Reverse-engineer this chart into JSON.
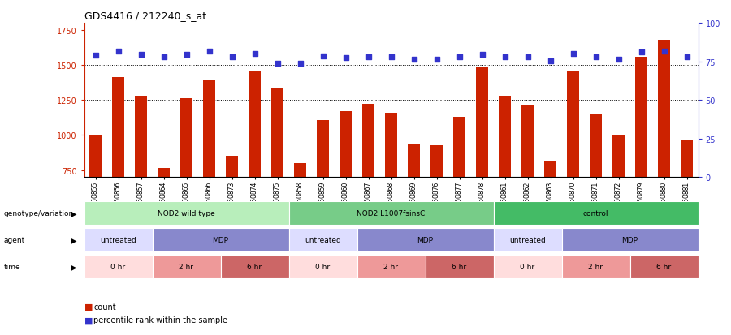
{
  "title": "GDS4416 / 212240_s_at",
  "samples": [
    "GSM560855",
    "GSM560856",
    "GSM560857",
    "GSM560864",
    "GSM560865",
    "GSM560866",
    "GSM560873",
    "GSM560874",
    "GSM560875",
    "GSM560858",
    "GSM560859",
    "GSM560860",
    "GSM560867",
    "GSM560868",
    "GSM560869",
    "GSM560876",
    "GSM560877",
    "GSM560878",
    "GSM560861",
    "GSM560862",
    "GSM560863",
    "GSM560870",
    "GSM560871",
    "GSM560872",
    "GSM560879",
    "GSM560880",
    "GSM560881"
  ],
  "counts": [
    1005,
    1415,
    1280,
    765,
    1260,
    1390,
    855,
    1460,
    1340,
    800,
    1105,
    1170,
    1225,
    1160,
    940,
    930,
    1130,
    1490,
    1280,
    1210,
    820,
    1455,
    1150,
    1005,
    1560,
    1680,
    970
  ],
  "percentile_values": [
    1570,
    1595,
    1575,
    1555,
    1575,
    1595,
    1560,
    1578,
    1510,
    1510,
    1565,
    1550,
    1555,
    1555,
    1540,
    1540,
    1560,
    1572,
    1558,
    1558,
    1530,
    1578,
    1558,
    1540,
    1590,
    1600,
    1555
  ],
  "ylim": [
    700,
    1800
  ],
  "yticks_left": [
    750,
    1000,
    1250,
    1500,
    1750
  ],
  "yticks_right": [
    0,
    25,
    50,
    75,
    100
  ],
  "hlines": [
    1000,
    1250,
    1500
  ],
  "bar_color": "#cc2200",
  "dot_color": "#3333cc",
  "plot_bg": "#ffffff",
  "genotype_groups": [
    {
      "label": "NOD2 wild type",
      "start": 0,
      "end": 9,
      "color": "#b8eebb"
    },
    {
      "label": "NOD2 L1007fsinsC",
      "start": 9,
      "end": 18,
      "color": "#77cc88"
    },
    {
      "label": "control",
      "start": 18,
      "end": 27,
      "color": "#44bb66"
    }
  ],
  "agent_groups": [
    {
      "label": "untreated",
      "start": 0,
      "end": 3,
      "color": "#ddddff"
    },
    {
      "label": "MDP",
      "start": 3,
      "end": 9,
      "color": "#8888cc"
    },
    {
      "label": "untreated",
      "start": 9,
      "end": 12,
      "color": "#ddddff"
    },
    {
      "label": "MDP",
      "start": 12,
      "end": 18,
      "color": "#8888cc"
    },
    {
      "label": "untreated",
      "start": 18,
      "end": 21,
      "color": "#ddddff"
    },
    {
      "label": "MDP",
      "start": 21,
      "end": 27,
      "color": "#8888cc"
    }
  ],
  "time_groups": [
    {
      "label": "0 hr",
      "start": 0,
      "end": 3,
      "color": "#ffdddd"
    },
    {
      "label": "2 hr",
      "start": 3,
      "end": 6,
      "color": "#ee9999"
    },
    {
      "label": "6 hr",
      "start": 6,
      "end": 9,
      "color": "#cc6666"
    },
    {
      "label": "0 hr",
      "start": 9,
      "end": 12,
      "color": "#ffdddd"
    },
    {
      "label": "2 hr",
      "start": 12,
      "end": 15,
      "color": "#ee9999"
    },
    {
      "label": "6 hr",
      "start": 15,
      "end": 18,
      "color": "#cc6666"
    },
    {
      "label": "0 hr",
      "start": 18,
      "end": 21,
      "color": "#ffdddd"
    },
    {
      "label": "2 hr",
      "start": 21,
      "end": 24,
      "color": "#ee9999"
    },
    {
      "label": "6 hr",
      "start": 24,
      "end": 27,
      "color": "#cc6666"
    }
  ],
  "row_labels": [
    "genotype/variation",
    "agent",
    "time"
  ]
}
